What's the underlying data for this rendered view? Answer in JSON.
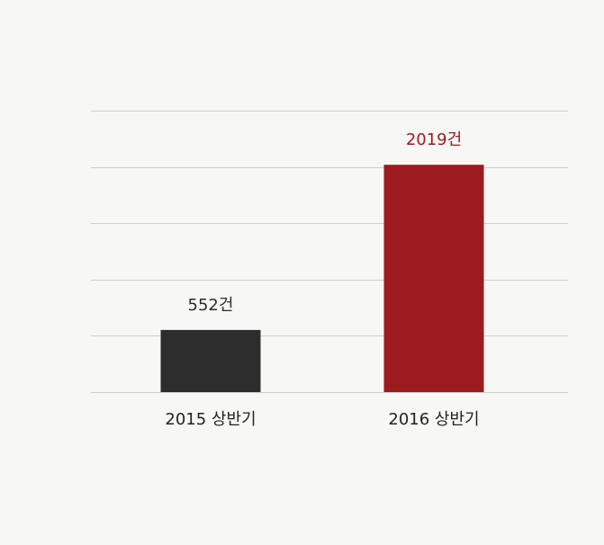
{
  "chart_data": {
    "type": "bar",
    "categories": [
      "2015 상반기",
      "2016 상반기"
    ],
    "values": [
      552,
      2019
    ],
    "value_labels": [
      "552건",
      "2019건"
    ],
    "colors": [
      "#2d2d2d",
      "#9b1b20"
    ],
    "ylim": [
      0,
      2500
    ],
    "yticks": [
      0,
      500,
      1000,
      1500,
      2000,
      2500
    ],
    "grid": true
  }
}
